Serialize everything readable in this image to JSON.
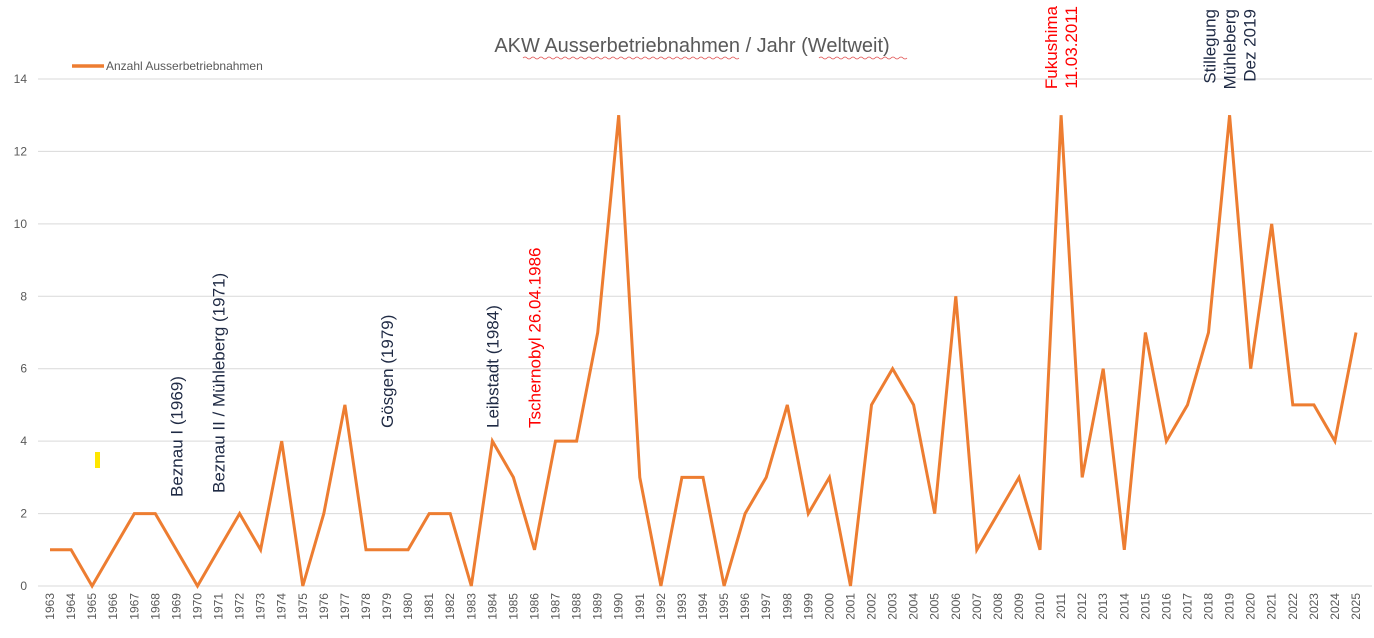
{
  "chart_data": {
    "type": "line",
    "title": "AKW Ausserbetriebnahmen / Jahr (Weltweit)",
    "xlabel": "",
    "ylabel": "",
    "ylim": [
      0,
      14
    ],
    "yticks": [
      0,
      2,
      4,
      6,
      8,
      10,
      12,
      14
    ],
    "grid": true,
    "legend_position": "top-left",
    "categories": [
      "1963",
      "1964",
      "1965",
      "1966",
      "1967",
      "1968",
      "1969",
      "1970",
      "1971",
      "1972",
      "1973",
      "1974",
      "1975",
      "1976",
      "1977",
      "1978",
      "1979",
      "1980",
      "1981",
      "1982",
      "1983",
      "1984",
      "1985",
      "1986",
      "1987",
      "1988",
      "1989",
      "1990",
      "1991",
      "1992",
      "1993",
      "1994",
      "1995",
      "1996",
      "1997",
      "1998",
      "1999",
      "2000",
      "2001",
      "2002",
      "2003",
      "2004",
      "2005",
      "2006",
      "2007",
      "2008",
      "2009",
      "2010",
      "2011",
      "2012",
      "2013",
      "2014",
      "2015",
      "2016",
      "2017",
      "2018",
      "2019",
      "2020",
      "2021",
      "2022",
      "2023",
      "2024",
      "2025"
    ],
    "series": [
      {
        "name": "Anzahl Ausserbetriebnahmen",
        "color": "#ED7D31",
        "values": [
          1,
          1,
          0,
          1,
          2,
          2,
          1,
          0,
          1,
          2,
          1,
          4,
          0,
          2,
          5,
          1,
          1,
          1,
          2,
          2,
          0,
          4,
          3,
          1,
          4,
          4,
          7,
          13,
          3,
          0,
          3,
          3,
          0,
          2,
          3,
          5,
          2,
          3,
          0,
          5,
          6,
          5,
          2,
          8,
          1,
          2,
          3,
          1,
          13,
          3,
          6,
          1,
          7,
          4,
          5,
          7,
          13,
          6,
          10,
          5,
          5,
          4,
          7
        ]
      }
    ],
    "annotations": [
      {
        "lines": [
          "Beznau I (1969)"
        ],
        "year": "1969",
        "color": "#1F2A44"
      },
      {
        "lines": [
          "Beznau II / Mühleberg (1971)"
        ],
        "year": "1971",
        "color": "#1F2A44"
      },
      {
        "lines": [
          "Gösgen (1979)"
        ],
        "year": "1979",
        "color": "#1F2A44"
      },
      {
        "lines": [
          "Leibstadt (1984)"
        ],
        "year": "1984",
        "color": "#1F2A44"
      },
      {
        "lines": [
          "Tschernobyl 26.04.1986"
        ],
        "year": "1986",
        "color": "#FF0000"
      },
      {
        "lines": [
          "Fukushima",
          "11.03.2011"
        ],
        "year": "2011",
        "color": "#FF0000"
      },
      {
        "lines": [
          "Stillegung",
          "Mühleberg",
          "Dez 2019"
        ],
        "year": "2019",
        "color": "#1F2A44"
      }
    ]
  }
}
